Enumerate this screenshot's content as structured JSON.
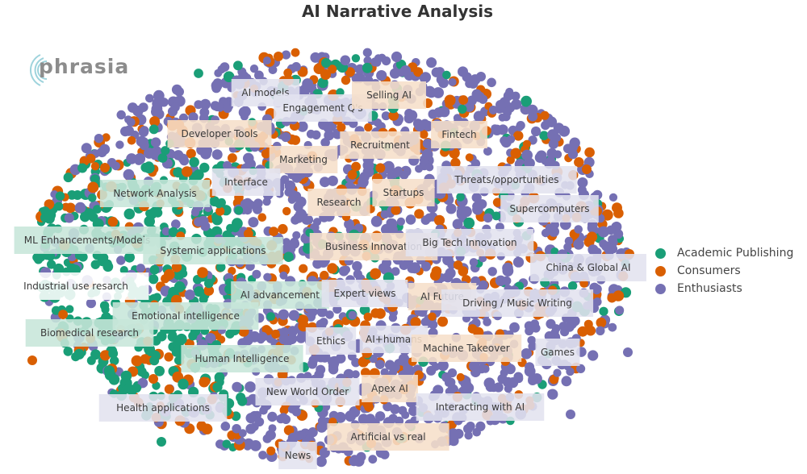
{
  "logo": {
    "text": "phrasia"
  },
  "chart_data": {
    "type": "scatter",
    "title": "AI Narrative Analysis",
    "xlabel": "",
    "ylabel": "",
    "grid": false,
    "legend_position": "right",
    "series": [
      {
        "name": "Academic Publishing",
        "color": "#1a9e77"
      },
      {
        "name": "Consumers",
        "color": "#d95f02"
      },
      {
        "name": "Enthusiasts",
        "color": "#7570b3"
      }
    ],
    "cluster_labels": [
      {
        "label": "AI models"
      },
      {
        "label": "Engagement Q's"
      },
      {
        "label": "Selling AI"
      },
      {
        "label": "Developer Tools"
      },
      {
        "label": "Fintech"
      },
      {
        "label": "Recruitment"
      },
      {
        "label": "Marketing"
      },
      {
        "label": "Interface"
      },
      {
        "label": "Threats/opportunities"
      },
      {
        "label": "Network Analysis"
      },
      {
        "label": "Research"
      },
      {
        "label": "Startups"
      },
      {
        "label": "Supercomputers"
      },
      {
        "label": "ML Enhancements/Models"
      },
      {
        "label": "Systemic applications"
      },
      {
        "label": "Business Innovation"
      },
      {
        "label": "Big Tech Innovation"
      },
      {
        "label": "China & Global AI"
      },
      {
        "label": "Industrial use resarch"
      },
      {
        "label": "AI advancement"
      },
      {
        "label": "Expert views"
      },
      {
        "label": "AI Future"
      },
      {
        "label": "Driving / Music Writing"
      },
      {
        "label": "Emotional intelligence"
      },
      {
        "label": "Biomedical research"
      },
      {
        "label": "Ethics"
      },
      {
        "label": "AI+humans"
      },
      {
        "label": "Machine Takeover"
      },
      {
        "label": "Games"
      },
      {
        "label": "Human Intelligence"
      },
      {
        "label": "New World Order"
      },
      {
        "label": "Apex AI"
      },
      {
        "label": "Health applications"
      },
      {
        "label": "Interacting with AI"
      },
      {
        "label": "Artificial vs real"
      },
      {
        "label": "News"
      }
    ]
  }
}
